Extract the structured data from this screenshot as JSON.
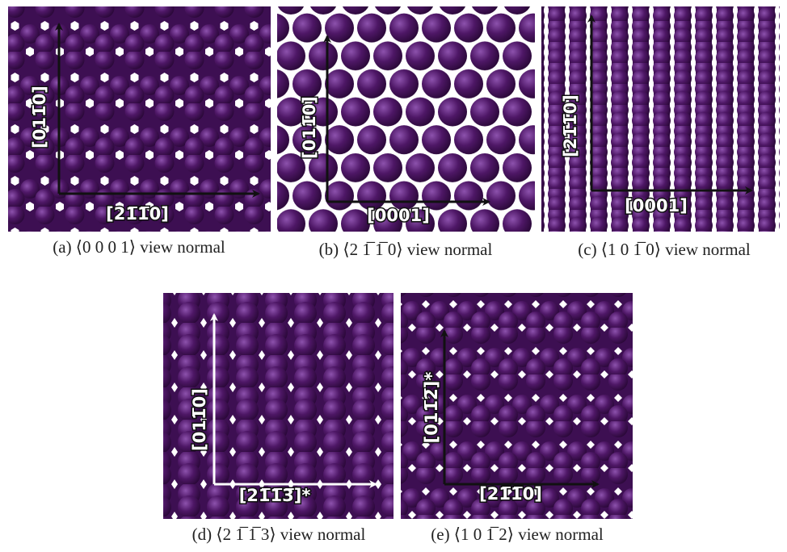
{
  "panels": [
    {
      "label_x": "[21̅1̅0]",
      "label_y": "[011̅0]",
      "caption": "(a) ⟨0 0 0 1⟩ view normal"
    },
    {
      "label_x": "[0001]",
      "label_y": "[011̅0]",
      "caption": "(b) ⟨2 1̅ 1̅ 0⟩ view normal"
    },
    {
      "label_x": "[0001]",
      "label_y": "[21̅1̅0]",
      "caption": "(c) ⟨1 0 1̅ 0⟩ view normal"
    },
    {
      "label_x": "[21̅1̅3̅]*",
      "label_y": "[011̅0]",
      "caption": "(d) ⟨2 1̅ 1̅ 3⟩ view normal"
    },
    {
      "label_x": "[21̅1̅0]",
      "label_y": "[011̅2̅]*",
      "caption": "(e) ⟨1 0 1̅ 2⟩ view normal"
    }
  ]
}
